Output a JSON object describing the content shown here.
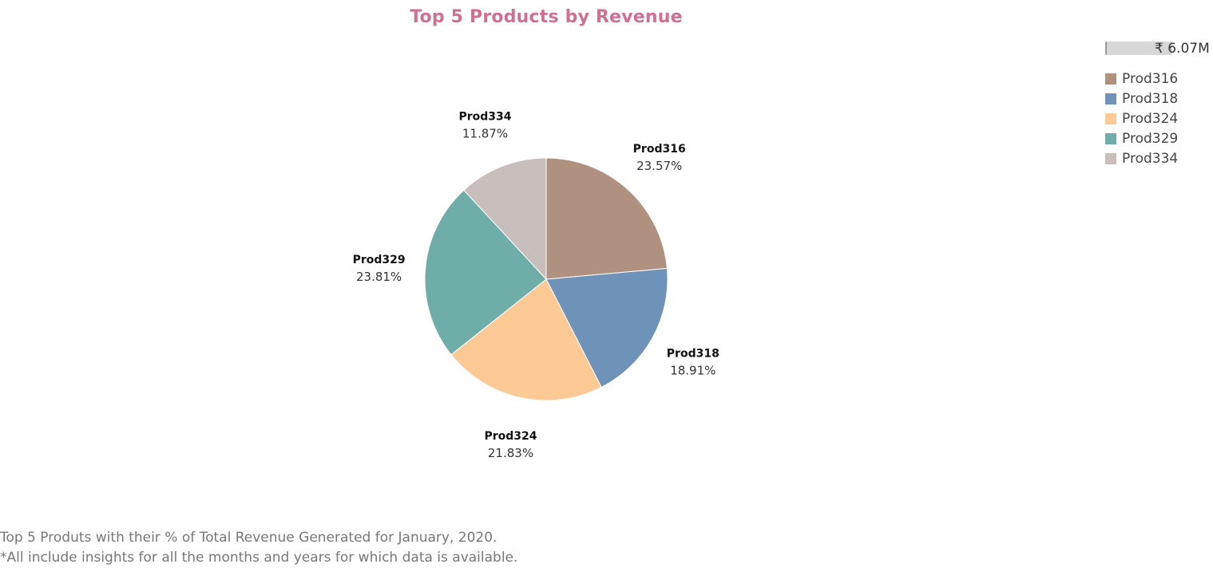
{
  "chart_data": {
    "type": "pie",
    "title": "Top 5 Products by Revenue",
    "slices": [
      {
        "label": "Prod316",
        "percent": 23.57,
        "percent_label": "23.57%",
        "color": "#b0907f"
      },
      {
        "label": "Prod318",
        "percent": 18.91,
        "percent_label": "18.91%",
        "color": "#6f93b8"
      },
      {
        "label": "Prod324",
        "percent": 21.83,
        "percent_label": "21.83%",
        "color": "#fdc995"
      },
      {
        "label": "Prod329",
        "percent": 23.81,
        "percent_label": "23.81%",
        "color": "#6fada9"
      },
      {
        "label": "Prod334",
        "percent": 11.87,
        "percent_label": "11.87%",
        "color": "#c8bfbc"
      }
    ],
    "legend": {
      "placement": "top-right",
      "size_value": "₹ 6.07M",
      "items": [
        "Prod316",
        "Prod318",
        "Prod324",
        "Prod329",
        "Prod334"
      ]
    }
  },
  "footnote": {
    "line1": "Top 5 Produts with their % of Total Revenue Generated for January, 2020.",
    "line2": "*All include insights for all the months and years for which data is available."
  }
}
